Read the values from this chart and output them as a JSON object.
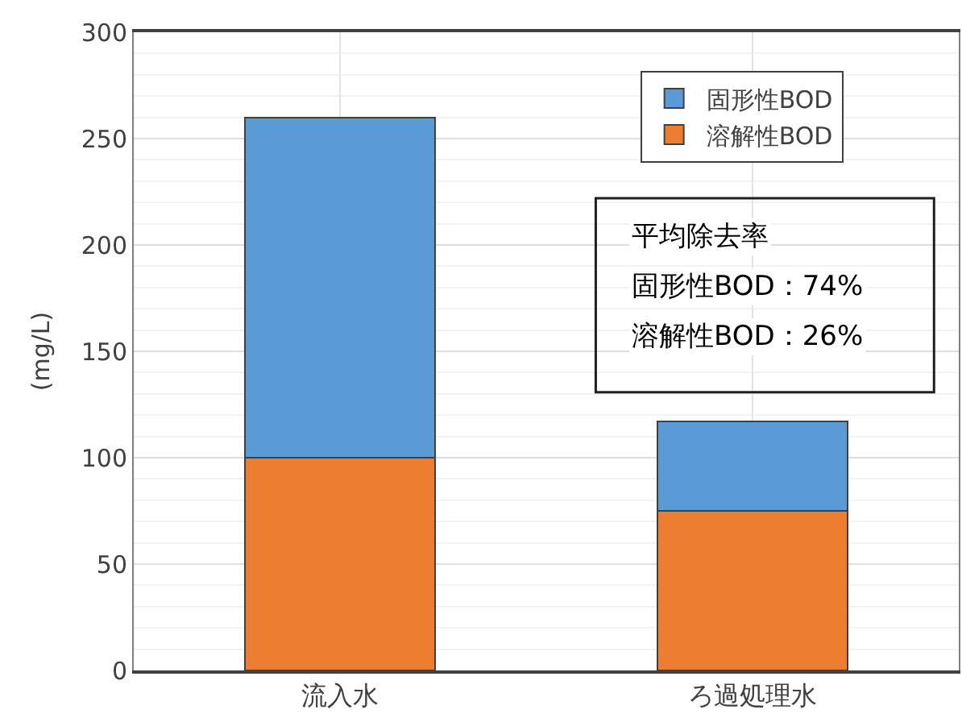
{
  "chart_data": {
    "type": "bar",
    "stacked": true,
    "ylabel": "(mg/L)",
    "categories": [
      "流入水",
      "ろ過処理水"
    ],
    "series": [
      {
        "name": "溶解性BOD",
        "color": "#ed7d31",
        "values": [
          100,
          75
        ]
      },
      {
        "name": "固形性BOD",
        "color": "#5b9bd5",
        "values": [
          160,
          42
        ]
      }
    ],
    "ylim": [
      0,
      300
    ],
    "yticks": [
      0,
      50,
      100,
      150,
      200,
      250,
      300
    ],
    "grid": true,
    "legend": "top right",
    "annotations": [
      "平均除去率",
      "固形性BOD：74%",
      "溶解性BOD：26%"
    ]
  }
}
